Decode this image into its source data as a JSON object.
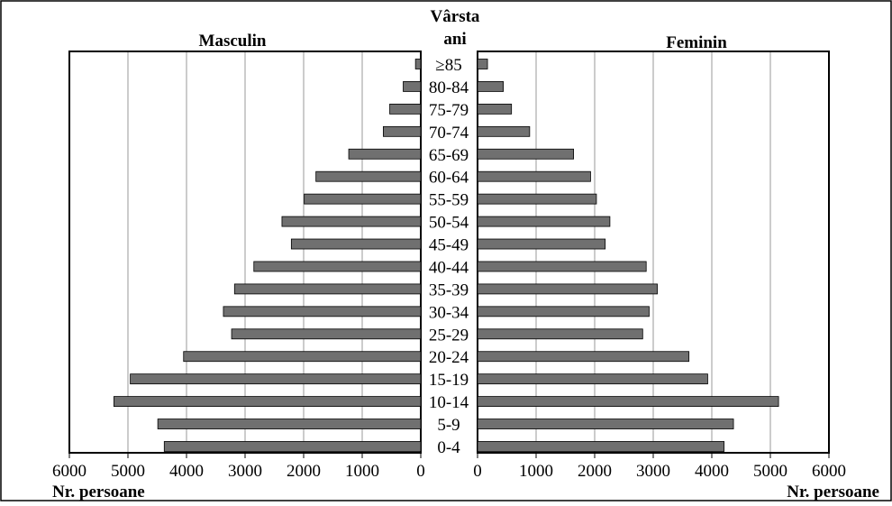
{
  "chart_data": {
    "type": "bar",
    "orientation": "horizontal",
    "layout": "population-pyramid",
    "center_title_line1": "Vârsta",
    "center_title_line2": "ani",
    "left_title": "Masculin",
    "right_title": "Feminin",
    "left_axis_label": "Nr. persoane",
    "right_axis_label": "Nr. persoane",
    "xlim": [
      0,
      6000
    ],
    "ticks": [
      0,
      1000,
      2000,
      3000,
      4000,
      5000,
      6000
    ],
    "tick_labels": [
      "0",
      "1000",
      "2000",
      "3000",
      "4000",
      "5000",
      "6000"
    ],
    "grid": true,
    "bar_color": "#707070",
    "categories": [
      "≥85",
      "80-84",
      "75-79",
      "70-74",
      "65-69",
      "60-64",
      "55-59",
      "50-54",
      "45-49",
      "40-44",
      "35-39",
      "30-34",
      "25-29",
      "20-24",
      "15-19",
      "10-14",
      "5-9",
      "0-4"
    ],
    "series": [
      {
        "name": "Masculin",
        "values": [
          90,
          300,
          530,
          640,
          1230,
          1790,
          1990,
          2370,
          2210,
          2850,
          3180,
          3370,
          3230,
          4050,
          4960,
          5240,
          4490,
          4380
        ]
      },
      {
        "name": "Feminin",
        "values": [
          170,
          440,
          580,
          890,
          1640,
          1930,
          2030,
          2260,
          2180,
          2880,
          3070,
          2930,
          2820,
          3610,
          3930,
          5140,
          4370,
          4210
        ]
      }
    ]
  }
}
